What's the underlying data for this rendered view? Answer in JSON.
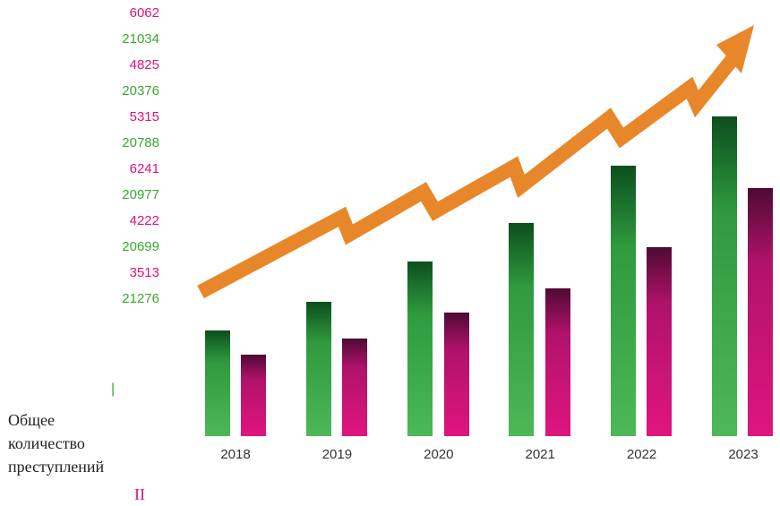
{
  "numbers": [
    6062,
    21034,
    4825,
    20376,
    5315,
    20788,
    6241,
    20977,
    4222,
    20699,
    3513,
    21276
  ],
  "years": [
    "2018",
    "2019",
    "2020",
    "2021",
    "2022",
    "2023"
  ],
  "marker": "|",
  "caption": [
    "Общее",
    "количество",
    "преступлений"
  ],
  "footer": "II"
}
